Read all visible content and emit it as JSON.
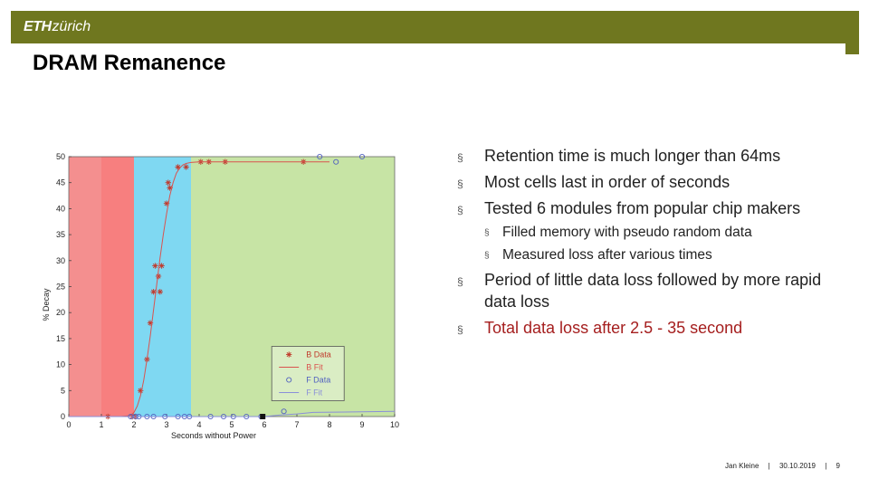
{
  "header": {
    "logo_eth": "ETH",
    "logo_zurich": "zürich"
  },
  "slide": {
    "title": "DRAM Remanence",
    "bullets": [
      "Retention time is much longer than 64ms",
      "Most cells last in order of seconds",
      "Tested 6 modules from popular chip makers"
    ],
    "sub_bullets": [
      "Filled memory with pseudo random data",
      "Measured loss after various times"
    ],
    "bullets2": [
      "Period of little data loss followed by more rapid data loss"
    ],
    "highlight_bullet": "Total data loss after 2.5 - 35 second",
    "bullet_marker": "§",
    "highlight_color": "#a51e1e"
  },
  "footer": {
    "author": "Jan Kleine",
    "date": "30.10.2019",
    "page": "9",
    "sep": "|"
  },
  "chart_data": {
    "type": "scatter",
    "xlabel": "Seconds without Power",
    "ylabel": "% Decay",
    "xlim": [
      0,
      10
    ],
    "ylim": [
      0,
      50
    ],
    "xticks": [
      0,
      1,
      2,
      3,
      4,
      5,
      6,
      7,
      8,
      9,
      10
    ],
    "yticks": [
      0,
      5,
      10,
      15,
      20,
      25,
      30,
      35,
      40,
      45,
      50
    ],
    "grid": false,
    "legend_position": "bottom-right",
    "regions": [
      {
        "from": 0,
        "to": 1.0,
        "color": "#f48f8f"
      },
      {
        "from": 1.0,
        "to": 2.0,
        "color": "#f77f7f"
      },
      {
        "from": 2.0,
        "to": 3.75,
        "color": "#7fd8f2"
      },
      {
        "from": 3.75,
        "to": 10,
        "color": "#c7e4a5"
      }
    ],
    "series": [
      {
        "name": "B Data",
        "marker": "star",
        "color": "#c0392b",
        "x": [
          1.2,
          1.95,
          2.05,
          2.2,
          2.4,
          2.5,
          2.6,
          2.65,
          2.75,
          2.8,
          2.85,
          3.0,
          3.05,
          3.1,
          3.35,
          3.6,
          4.05,
          4.3,
          4.8,
          7.2
        ],
        "y": [
          0,
          0,
          0,
          5,
          11,
          18,
          24,
          29,
          27,
          24,
          29,
          41,
          45,
          44,
          48,
          48,
          49,
          49,
          49,
          49
        ]
      },
      {
        "name": "B Fit",
        "marker": "line",
        "color": "#d9534f",
        "x": [
          0,
          1.6,
          1.9,
          2.0,
          2.1,
          2.2,
          2.3,
          2.4,
          2.5,
          2.6,
          2.7,
          2.8,
          2.9,
          3.0,
          3.1,
          3.2,
          3.3,
          3.4,
          3.5,
          3.6,
          3.75,
          4.0,
          5.0,
          8.0
        ],
        "y": [
          0,
          0,
          0.2,
          0.8,
          2,
          4,
          7,
          11,
          15.5,
          20.5,
          25.5,
          30.5,
          35,
          39,
          42.5,
          45,
          46.8,
          47.8,
          48.4,
          48.7,
          48.9,
          49,
          49,
          49
        ]
      },
      {
        "name": "F Data",
        "marker": "circle",
        "color": "#5060c0",
        "x": [
          1.9,
          2.05,
          2.15,
          2.4,
          2.6,
          2.95,
          3.35,
          3.55,
          3.7,
          4.35,
          4.75,
          5.05,
          5.45,
          5.9,
          6.6,
          7.7,
          8.2,
          9.0
        ],
        "y": [
          0,
          0,
          0,
          0,
          0,
          0,
          0,
          0,
          0,
          0,
          0,
          0,
          0,
          0,
          1,
          50,
          49,
          50
        ]
      },
      {
        "name": "F Fit",
        "marker": "line",
        "color": "#8a8fd9",
        "x": [
          0,
          6.0,
          6.5,
          7.0,
          7.5,
          10
        ],
        "y": [
          0,
          0,
          0.3,
          0.5,
          0.8,
          1
        ]
      }
    ]
  }
}
